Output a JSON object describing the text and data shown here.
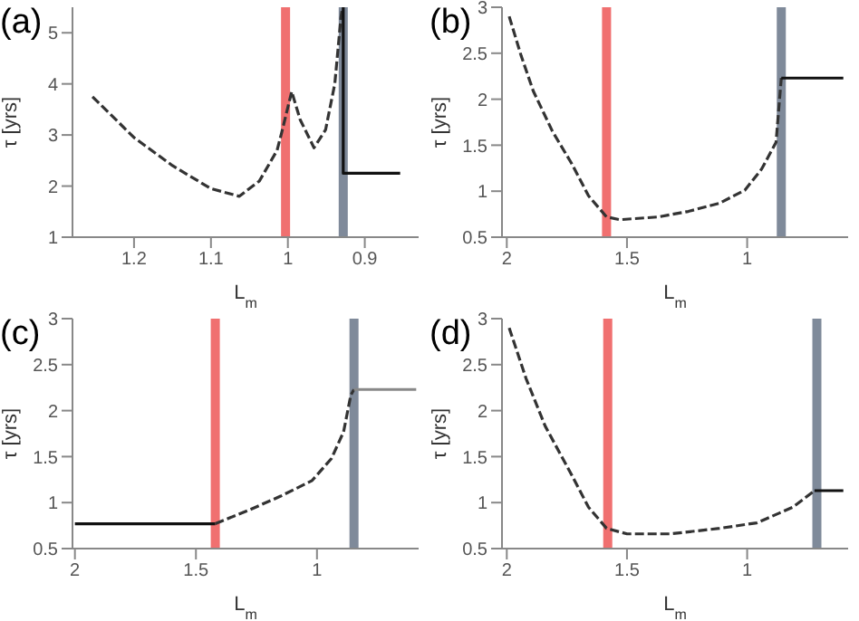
{
  "chart_data": [
    {
      "type": "line",
      "title": "(a)",
      "xlabel": "L$_{m}$",
      "ylabel": "τ [yrs]",
      "xlim": [
        1.28,
        0.83
      ],
      "xticks": [
        1.2,
        1.1,
        1,
        0.9
      ],
      "ylim": [
        1,
        5.5
      ],
      "yticks": [
        1,
        2,
        3,
        4,
        5
      ],
      "series": [
        {
          "color": "#333333",
          "line_style": "dashed",
          "x": [
            1.254,
            1.2,
            1.15,
            1.1,
            1.063,
            1.037,
            1.014,
            1.008,
            0.995,
            0.984,
            0.966,
            0.951,
            0.939,
            0.931,
            0.929
          ],
          "values": [
            3.75,
            2.95,
            2.4,
            1.95,
            1.8,
            2.1,
            2.7,
            3.05,
            3.85,
            3.3,
            2.75,
            3.1,
            4.0,
            5.3,
            5.5
          ]
        },
        {
          "color": "#111111",
          "line_style": "solid",
          "x": [
            0.928,
            0.928,
            0.854
          ],
          "values": [
            5.5,
            2.25,
            2.25
          ]
        }
      ],
      "ref_lines": [
        {
          "axis": "x",
          "value": 1.003,
          "color": "#f07070"
        },
        {
          "axis": "x",
          "value": 0.928,
          "color": "#7f8a9a"
        }
      ]
    },
    {
      "type": "line",
      "title": "(b)",
      "xlabel": "L$_{m}$",
      "ylabel": "τ [yrs]",
      "xlim": [
        2.02,
        0.58
      ],
      "xticks": [
        2,
        1.5,
        1
      ],
      "ylim": [
        0.5,
        3
      ],
      "yticks": [
        0.5,
        1,
        1.5,
        2,
        2.5,
        3
      ],
      "series": [
        {
          "color": "#333333",
          "line_style": "dashed",
          "x": [
            1.99,
            1.94,
            1.89,
            1.81,
            1.73,
            1.66,
            1.585,
            1.53,
            1.37,
            1.245,
            1.115,
            1.01,
            0.94,
            0.88,
            0.858
          ],
          "values": [
            2.9,
            2.47,
            2.09,
            1.65,
            1.3,
            0.95,
            0.72,
            0.69,
            0.72,
            0.78,
            0.87,
            1.01,
            1.24,
            1.53,
            2.23
          ]
        },
        {
          "color": "#111111",
          "line_style": "solid",
          "x": [
            0.858,
            0.6
          ],
          "values": [
            2.23,
            2.23
          ]
        }
      ],
      "ref_lines": [
        {
          "axis": "x",
          "value": 1.585,
          "color": "#f07070"
        },
        {
          "axis": "x",
          "value": 0.858,
          "color": "#7f8a9a"
        }
      ]
    },
    {
      "type": "line",
      "title": "(c)",
      "xlabel": "L$_{m}$",
      "ylabel": "τ [yrs]",
      "xlim": [
        2.01,
        0.58
      ],
      "xticks": [
        2,
        1.5,
        1
      ],
      "ylim": [
        0.5,
        3
      ],
      "yticks": [
        0.5,
        1,
        1.5,
        2,
        2.5,
        3
      ],
      "series": [
        {
          "color": "#111111",
          "line_style": "solid",
          "x": [
            2,
            1.42
          ],
          "values": [
            0.77,
            0.77
          ]
        },
        {
          "color": "#333333",
          "line_style": "dashed",
          "x": [
            1.42,
            1.28,
            1.15,
            1.02,
            0.94,
            0.89,
            0.86,
            0.847
          ],
          "values": [
            0.77,
            0.92,
            1.07,
            1.24,
            1.48,
            1.77,
            2.17,
            2.23
          ]
        },
        {
          "color": "#888888",
          "line_style": "solid",
          "x": [
            0.847,
            0.59
          ],
          "values": [
            2.23,
            2.23
          ]
        }
      ],
      "ref_lines": [
        {
          "axis": "x",
          "value": 1.42,
          "color": "#f07070"
        },
        {
          "axis": "x",
          "value": 0.847,
          "color": "#7f8a9a"
        }
      ]
    },
    {
      "type": "line",
      "title": "(d)",
      "xlabel": "L$_{m}$",
      "ylabel": "τ [yrs]",
      "xlim": [
        2.02,
        0.58
      ],
      "xticks": [
        2,
        1.5,
        1
      ],
      "ylim": [
        0.5,
        3
      ],
      "yticks": [
        0.5,
        1,
        1.5,
        2,
        2.5,
        3
      ],
      "series": [
        {
          "color": "#333333",
          "line_style": "dashed",
          "x": [
            1.99,
            1.92,
            1.84,
            1.73,
            1.66,
            1.585,
            1.5,
            1.32,
            1.115,
            0.96,
            0.81,
            0.72
          ],
          "values": [
            2.9,
            2.35,
            1.83,
            1.3,
            0.95,
            0.72,
            0.66,
            0.66,
            0.72,
            0.78,
            0.95,
            1.13
          ]
        },
        {
          "color": "#111111",
          "line_style": "solid",
          "x": [
            0.72,
            0.6
          ],
          "values": [
            1.13,
            1.13
          ]
        }
      ],
      "ref_lines": [
        {
          "axis": "x",
          "value": 1.58,
          "color": "#f07070"
        },
        {
          "axis": "x",
          "value": 0.71,
          "color": "#7f8a9a"
        }
      ]
    }
  ]
}
